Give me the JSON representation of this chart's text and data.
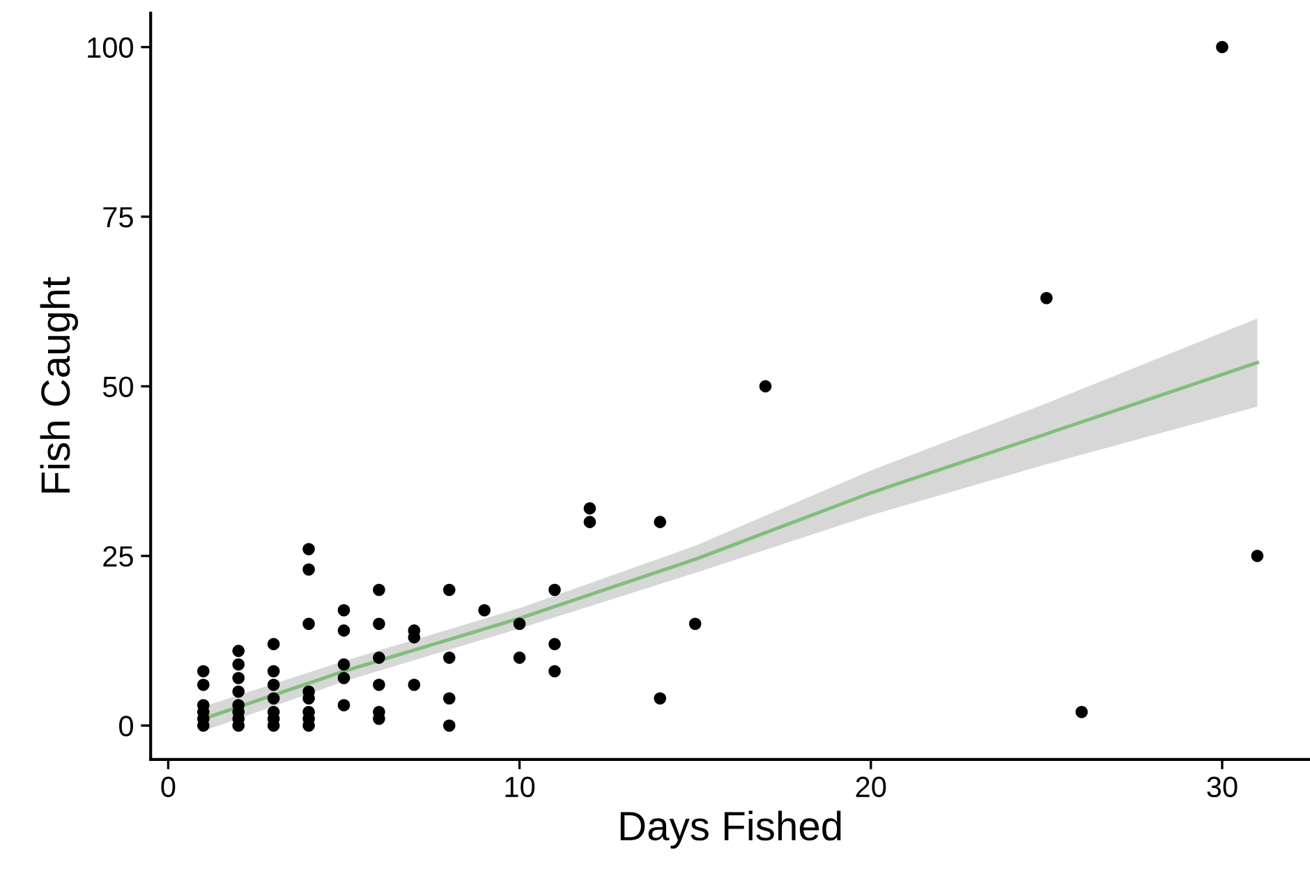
{
  "chart_data": {
    "type": "scatter",
    "xlabel": "Days Fished",
    "ylabel": "Fish Caught",
    "xlim": [
      -0.5,
      32.5
    ],
    "ylim": [
      -5,
      105
    ],
    "xticks": [
      0,
      10,
      20,
      30
    ],
    "yticks": [
      0,
      25,
      50,
      75,
      100
    ],
    "grid": false,
    "marker": "circle",
    "series": [
      {
        "color": "#000000",
        "x": [
          1,
          1,
          1,
          1,
          1,
          1,
          2,
          2,
          2,
          2,
          2,
          2,
          2,
          2,
          3,
          3,
          3,
          3,
          3,
          3,
          3,
          4,
          4,
          4,
          4,
          4,
          4,
          4,
          4,
          5,
          5,
          5,
          5,
          5,
          6,
          6,
          6,
          6,
          6,
          6,
          7,
          7,
          7,
          8,
          8,
          8,
          8,
          9,
          10,
          10,
          11,
          11,
          11,
          12,
          12,
          14,
          14,
          15,
          17,
          25,
          26,
          30,
          31
        ],
        "values": [
          0,
          1,
          2,
          3,
          6,
          8,
          0,
          1,
          2,
          3,
          5,
          7,
          9,
          11,
          0,
          1,
          2,
          4,
          6,
          8,
          12,
          0,
          1,
          2,
          4,
          5,
          15,
          23,
          26,
          3,
          7,
          9,
          14,
          17,
          1,
          2,
          6,
          10,
          15,
          20,
          6,
          13,
          14,
          0,
          4,
          10,
          20,
          17,
          10,
          15,
          8,
          12,
          20,
          30,
          32,
          4,
          30,
          15,
          50,
          63,
          2,
          100,
          25
        ]
      },
      {
        "type": "line",
        "marker": "none",
        "color": "#7fbf7b",
        "x": [
          1,
          5,
          10,
          15,
          20,
          25,
          31
        ],
        "values": [
          1.0,
          8.0,
          15.8,
          24.5,
          34.3,
          43.0,
          53.5
        ],
        "lower": [
          -0.8,
          6.5,
          14.3,
          22.5,
          31.0,
          38.5,
          47.0
        ],
        "upper": [
          2.8,
          9.5,
          17.3,
          26.5,
          37.6,
          47.5,
          60.0
        ]
      }
    ]
  }
}
